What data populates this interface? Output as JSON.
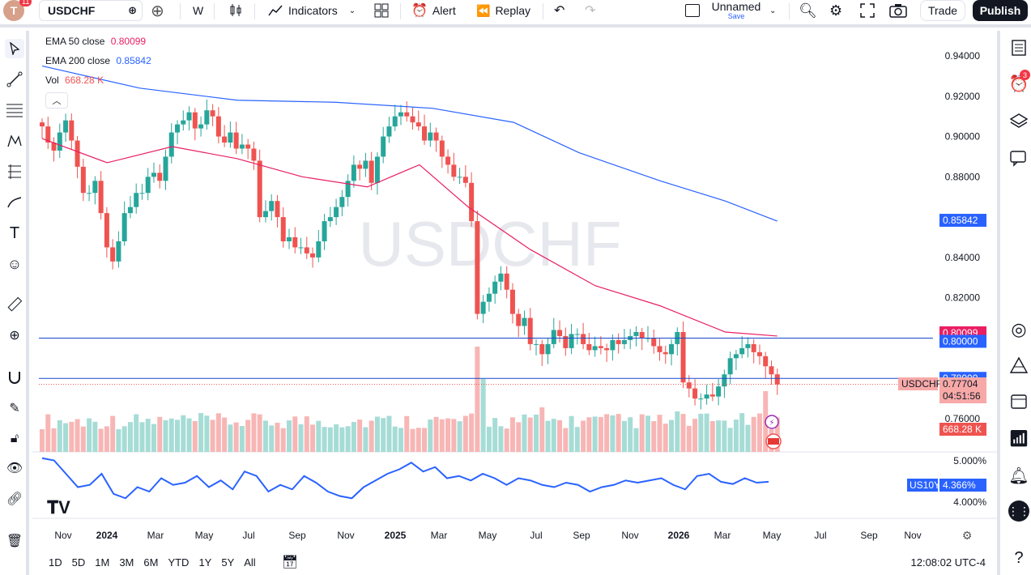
{
  "toolbar": {
    "avatar_letter": "T",
    "avatar_badge": "11",
    "symbol": "USDCHF",
    "interval": "W",
    "indicators_label": "Indicators",
    "alert_label": "Alert",
    "replay_label": "Replay",
    "layout_name": "Unnamed",
    "layout_save": "Save",
    "trade_label": "Trade",
    "publish_label": "Publish"
  },
  "legend": {
    "ema50_label": "EMA 50 close",
    "ema50_value": "0.80099",
    "ema200_label": "EMA 200 close",
    "ema200_value": "0.85842",
    "vol_label": "Vol",
    "vol_value": "668.28 K"
  },
  "watermark": "USDCHF",
  "price_axis": {
    "ticks": [
      "0.94000",
      "0.92000",
      "0.90000",
      "0.88000",
      "0.84000",
      "0.82000",
      "0.76000"
    ],
    "ema200_tag": "0.85842",
    "ema50_tag": "0.80099",
    "line1_tag": "0.80000",
    "line2_tag": "0.78000",
    "symbol_tag": "USDCHF",
    "last_price": "0.77704",
    "countdown": "04:51:56",
    "vol_tag": "668.28 K"
  },
  "sub_axis": {
    "top_tick": "5.000%",
    "bottom_tick": "4.000%",
    "us10y_label": "US10Y",
    "us10y_value": "4.366%"
  },
  "time_axis": [
    "Nov",
    "2024",
    "Mar",
    "May",
    "Jul",
    "Sep",
    "Nov",
    "2025",
    "Mar",
    "May",
    "Jul",
    "Sep",
    "Nov",
    "2026",
    "Mar",
    "May",
    "Jul",
    "Sep",
    "Nov"
  ],
  "ranges": [
    "1D",
    "5D",
    "1M",
    "3M",
    "6M",
    "YTD",
    "1Y",
    "5Y",
    "All"
  ],
  "clock": "12:08:02 UTC-4",
  "right_alert_badge": "3",
  "colors": {
    "up": "#26a69a",
    "down": "#ef5350",
    "ema50": "#e91e63",
    "ema200": "#2962ff",
    "us10y": "#2962ff"
  },
  "chart_data": {
    "type": "candlestick",
    "symbol": "USDCHF",
    "interval": "W",
    "ylim": [
      0.76,
      0.94
    ],
    "horizontal_lines": [
      0.8,
      0.78
    ],
    "ema50_last": 0.80099,
    "ema200_last": 0.85842,
    "last_close": 0.77704,
    "closes": [
      0.905,
      0.897,
      0.893,
      0.902,
      0.908,
      0.898,
      0.885,
      0.872,
      0.872,
      0.878,
      0.862,
      0.845,
      0.838,
      0.848,
      0.862,
      0.865,
      0.872,
      0.872,
      0.88,
      0.882,
      0.878,
      0.89,
      0.902,
      0.906,
      0.908,
      0.912,
      0.904,
      0.906,
      0.913,
      0.91,
      0.9,
      0.897,
      0.902,
      0.894,
      0.896,
      0.894,
      0.888,
      0.86,
      0.863,
      0.868,
      0.86,
      0.848,
      0.85,
      0.845,
      0.845,
      0.842,
      0.84,
      0.848,
      0.858,
      0.86,
      0.865,
      0.87,
      0.878,
      0.886,
      0.884,
      0.888,
      0.877,
      0.89,
      0.9,
      0.905,
      0.91,
      0.912,
      0.91,
      0.907,
      0.905,
      0.898,
      0.902,
      0.898,
      0.89,
      0.886,
      0.88,
      0.88,
      0.877,
      0.858,
      0.812,
      0.818,
      0.822,
      0.828,
      0.832,
      0.824,
      0.812,
      0.806,
      0.81,
      0.797,
      0.797,
      0.792,
      0.797,
      0.804,
      0.801,
      0.795,
      0.802,
      0.802,
      0.797,
      0.794,
      0.796,
      0.795,
      0.794,
      0.799,
      0.797,
      0.799,
      0.801,
      0.803,
      0.8,
      0.8,
      0.796,
      0.793,
      0.792,
      0.797,
      0.803,
      0.778,
      0.775,
      0.77,
      0.77,
      0.772,
      0.771,
      0.776,
      0.782,
      0.79,
      0.792,
      0.795,
      0.797,
      0.793,
      0.791,
      0.786,
      0.782,
      0.777
    ],
    "ema50_points": [
      [
        0,
        0.899
      ],
      [
        40,
        0.887
      ],
      [
        80,
        0.895
      ],
      [
        120,
        0.889
      ],
      [
        160,
        0.88
      ],
      [
        200,
        0.875
      ],
      [
        232,
        0.886
      ],
      [
        262,
        0.865
      ],
      [
        300,
        0.844
      ],
      [
        340,
        0.826
      ],
      [
        380,
        0.816
      ],
      [
        420,
        0.803
      ],
      [
        452,
        0.801
      ]
    ],
    "ema200_points": [
      [
        0,
        0.935
      ],
      [
        60,
        0.924
      ],
      [
        120,
        0.918
      ],
      [
        180,
        0.917
      ],
      [
        240,
        0.914
      ],
      [
        290,
        0.907
      ],
      [
        330,
        0.892
      ],
      [
        380,
        0.878
      ],
      [
        420,
        0.868
      ],
      [
        452,
        0.858
      ]
    ],
    "volume_note": "volume histogram bars, green on up weeks and red on down weeks",
    "us10y_ylim": [
      4.0,
      5.0
    ]
  }
}
